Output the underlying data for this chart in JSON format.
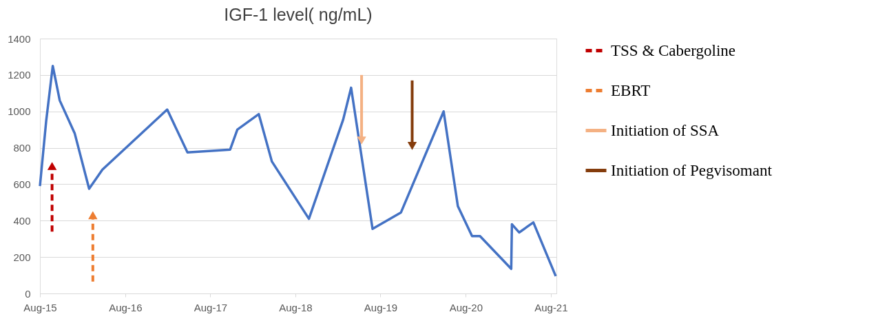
{
  "chart_data": {
    "type": "line",
    "title": "IGF-1 level( ng/mL)",
    "ylim": [
      0,
      1400
    ],
    "yticks": [
      0,
      200,
      400,
      600,
      800,
      1000,
      1200,
      1400
    ],
    "xlim": [
      "2015-08-01",
      "2021-08-25"
    ],
    "xticks": [
      {
        "value": "2015-08-01",
        "label": "Aug-15"
      },
      {
        "value": "2016-08-01",
        "label": "Aug-16"
      },
      {
        "value": "2017-08-01",
        "label": "Aug-17"
      },
      {
        "value": "2018-08-01",
        "label": "Aug-18"
      },
      {
        "value": "2019-08-01",
        "label": "Aug-19"
      },
      {
        "value": "2020-08-01",
        "label": "Aug-20"
      },
      {
        "value": "2021-08-01",
        "label": "Aug-21"
      }
    ],
    "grid": "y",
    "legend": "right",
    "marker": "none",
    "line_style": "solid",
    "series": [
      {
        "color": "#4472c4",
        "x": [
          "2015-08-01",
          "2015-08-28",
          "2015-09-25",
          "2015-10-25",
          "2015-12-28",
          "2016-02-28",
          "2016-04-25",
          "2017-01-28",
          "2017-04-25",
          "2017-10-25",
          "2017-11-25",
          "2018-02-25",
          "2018-04-22",
          "2018-09-28",
          "2019-02-22",
          "2019-03-28",
          "2019-06-28",
          "2019-10-28",
          "2020-04-28",
          "2020-06-28",
          "2020-08-28",
          "2020-10-01",
          "2021-02-12",
          "2021-02-15",
          "2021-03-18",
          "2021-05-18",
          "2021-08-22"
        ],
        "values": [
          590,
          950,
          1250,
          1060,
          880,
          575,
          680,
          1010,
          775,
          790,
          900,
          985,
          725,
          410,
          955,
          1130,
          355,
          445,
          1000,
          480,
          315,
          315,
          135,
          380,
          335,
          390,
          95
        ]
      },
      {
        "name": "TSS & Cabergoline",
        "color": "#c00000",
        "line_style": "dashed",
        "marker": "triangle",
        "x": [
          "2015-09-22",
          "2015-09-22"
        ],
        "values": [
          340,
          700
        ]
      },
      {
        "name": "EBRT",
        "color": "#ed7d31",
        "line_style": "dashed",
        "marker": "triangle",
        "x": [
          "2016-03-15",
          "2016-03-15"
        ],
        "values": [
          65,
          430
        ]
      },
      {
        "name": "Initiation of SSA",
        "color": "#f4b183",
        "line_style": "solid",
        "marker": "triangle",
        "x": [
          "2019-05-12",
          "2019-05-12"
        ],
        "values": [
          1200,
          840
        ]
      },
      {
        "name": "Initiation of Pegvisomant",
        "color": "#843c0c",
        "line_style": "solid",
        "marker": "triangle",
        "x": [
          "2019-12-15",
          "2019-12-15"
        ],
        "values": [
          1170,
          810
        ]
      }
    ]
  }
}
